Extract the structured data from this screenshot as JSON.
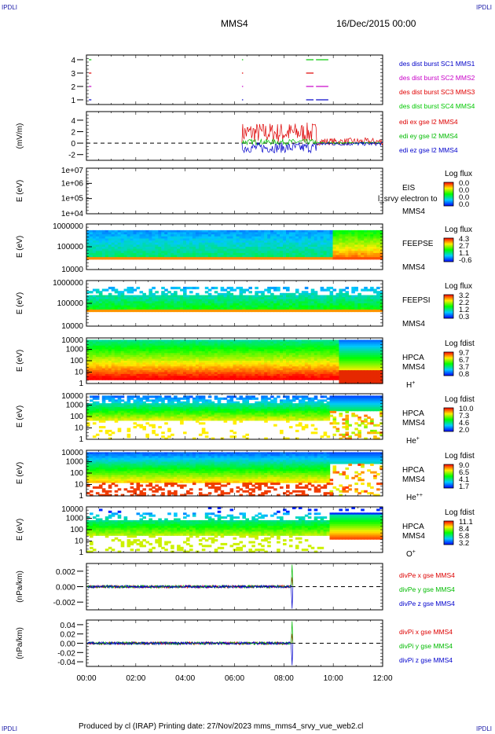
{
  "header": {
    "corner_mark": "IPDLI",
    "spacecraft": "MMS4",
    "datetime": "16/Dec/2015 00:00"
  },
  "footer": {
    "text": "Produced by cl (IRAP)   Printing date: 27/Nov/2023   mms_mms4_srvy_vue_web2.cl"
  },
  "colors": {
    "mms1": "#0000c8",
    "mms2": "#c800c8",
    "mms3": "#e00000",
    "mms4": "#00c800",
    "red": "#dd0000",
    "green": "#00bb00",
    "blue": "#0000cc"
  },
  "x_axis": {
    "ticks": [
      "00:00",
      "02:00",
      "04:00",
      "06:00",
      "08:00",
      "10:00",
      "12:00"
    ]
  },
  "chart_data": [
    {
      "type": "line",
      "id": "burst",
      "yticks": [
        "4",
        "3",
        "2",
        "1"
      ],
      "legend": [
        "des dist burst SC1 MMS1",
        "des dist burst SC2 MMS2",
        "des dist burst SC3 MMS3",
        "des dist burst SC4 MMS4"
      ],
      "series": [
        {
          "name": "des dist burst SC1 MMS1",
          "level": 1,
          "intervals": [
            [
              0.1,
              0.2
            ],
            [
              6.3,
              6.32
            ],
            [
              8.9,
              9.2
            ],
            [
              9.3,
              9.8
            ]
          ]
        },
        {
          "name": "des dist burst SC2 MMS2",
          "level": 2,
          "intervals": [
            [
              0.1,
              0.2
            ],
            [
              6.3,
              6.32
            ],
            [
              8.9,
              9.2
            ],
            [
              9.3,
              9.8
            ]
          ]
        },
        {
          "name": "des dist burst SC3 MMS3",
          "level": 3,
          "intervals": [
            [
              0.1,
              0.2
            ],
            [
              6.3,
              6.32
            ],
            [
              8.9,
              9.2
            ]
          ]
        },
        {
          "name": "des dist burst SC4 MMS4",
          "level": 4,
          "intervals": [
            [
              0.1,
              0.2
            ],
            [
              6.3,
              6.32
            ],
            [
              8.9,
              9.2
            ],
            [
              9.3,
              9.8
            ]
          ]
        }
      ],
      "xlim": [
        0,
        12
      ]
    },
    {
      "type": "line",
      "id": "edi",
      "ylabel": "(mV/m)",
      "ylim": [
        -3,
        5.5
      ],
      "yticks": [
        "4",
        "2",
        "0",
        "-2"
      ],
      "legend": [
        "edi ex gse l2 MMS4",
        "edi ey gse l2 MMS4",
        "edi ez gse l2 MMS4"
      ],
      "data_start_hour": 6.3
    },
    {
      "type": "heatmap",
      "id": "eis",
      "ylabel": "E (eV)",
      "yticks": [
        "1e+07",
        "1e+06",
        "1e+05",
        "1e+04"
      ],
      "side_labels": [
        "EIS",
        "MMS4"
      ],
      "overlay_label": "l_srvy electron to",
      "colorbar": {
        "title": "Log flux",
        "ticks": [
          "0.0",
          "0.0",
          "0.0",
          "0.0"
        ]
      }
    },
    {
      "type": "heatmap",
      "id": "feepse",
      "ylabel": "E (eV)",
      "yticks": [
        "1000000",
        "100000",
        "10000"
      ],
      "side_labels": [
        "FEEPSE",
        "MMS4"
      ],
      "colorbar": {
        "title": "Log flux",
        "ticks": [
          "4.3",
          "2.7",
          "1.1",
          "-0.6"
        ]
      }
    },
    {
      "type": "heatmap",
      "id": "feepsi",
      "ylabel": "E (eV)",
      "yticks": [
        "1000000",
        "100000",
        "10000"
      ],
      "side_labels": [
        "FEEPSI",
        "MMS4"
      ],
      "colorbar": {
        "title": "Log flux",
        "ticks": [
          "3.2",
          "2.2",
          "1.2",
          "0.3"
        ]
      }
    },
    {
      "type": "heatmap",
      "id": "hpca-h",
      "ylabel": "E (eV)",
      "yticks": [
        "10000",
        "1000",
        "100",
        "10",
        "1"
      ],
      "side_labels": [
        "HPCA",
        "MMS4"
      ],
      "species": {
        "base": "H",
        "sup": "+"
      },
      "colorbar": {
        "title": "Log fdist",
        "ticks": [
          "9.7",
          "6.7",
          "3.7",
          "0.8"
        ]
      }
    },
    {
      "type": "heatmap",
      "id": "hpca-he",
      "ylabel": "E (eV)",
      "yticks": [
        "10000",
        "1000",
        "100",
        "10",
        "1"
      ],
      "side_labels": [
        "HPCA",
        "MMS4"
      ],
      "species": {
        "base": "He",
        "sup": "+"
      },
      "colorbar": {
        "title": "Log fdist",
        "ticks": [
          "10.0",
          "7.3",
          "4.6",
          "2.0"
        ]
      }
    },
    {
      "type": "heatmap",
      "id": "hpca-hepp",
      "ylabel": "E (eV)",
      "yticks": [
        "10000",
        "1000",
        "100",
        "10",
        "1"
      ],
      "side_labels": [
        "HPCA",
        "MMS4"
      ],
      "species": {
        "base": "He",
        "sup": "++"
      },
      "colorbar": {
        "title": "Log fdist",
        "ticks": [
          "9.0",
          "6.5",
          "4.1",
          "1.7"
        ]
      }
    },
    {
      "type": "heatmap",
      "id": "hpca-o",
      "ylabel": "E (eV)",
      "yticks": [
        "10000",
        "1000",
        "100",
        "10",
        "1"
      ],
      "side_labels": [
        "HPCA",
        "MMS4"
      ],
      "species": {
        "base": "O",
        "sup": "+"
      },
      "colorbar": {
        "title": "Log fdist",
        "ticks": [
          "11.1",
          "8.4",
          "5.8",
          "3.2"
        ]
      }
    },
    {
      "type": "line",
      "id": "divpe",
      "ylabel": "(nPa/km)",
      "ylim": [
        -0.003,
        0.003
      ],
      "yticks": [
        "0.002",
        "0.000",
        "-0.002"
      ],
      "legend": [
        "divPe x gse MMS4",
        "divPe y gse MMS4",
        "divPe z gse MMS4"
      ],
      "data_end_hour": 8.3
    },
    {
      "type": "line",
      "id": "divpi",
      "ylabel": "(nPa/km)",
      "ylim": [
        -0.05,
        0.05
      ],
      "yticks": [
        "0.04",
        "0.02",
        "0.00",
        "-0.02",
        "-0.04"
      ],
      "legend": [
        "divPi x gse MMS4",
        "divPi y gse MMS4",
        "divPi z gse MMS4"
      ],
      "data_end_hour": 8.3
    }
  ]
}
